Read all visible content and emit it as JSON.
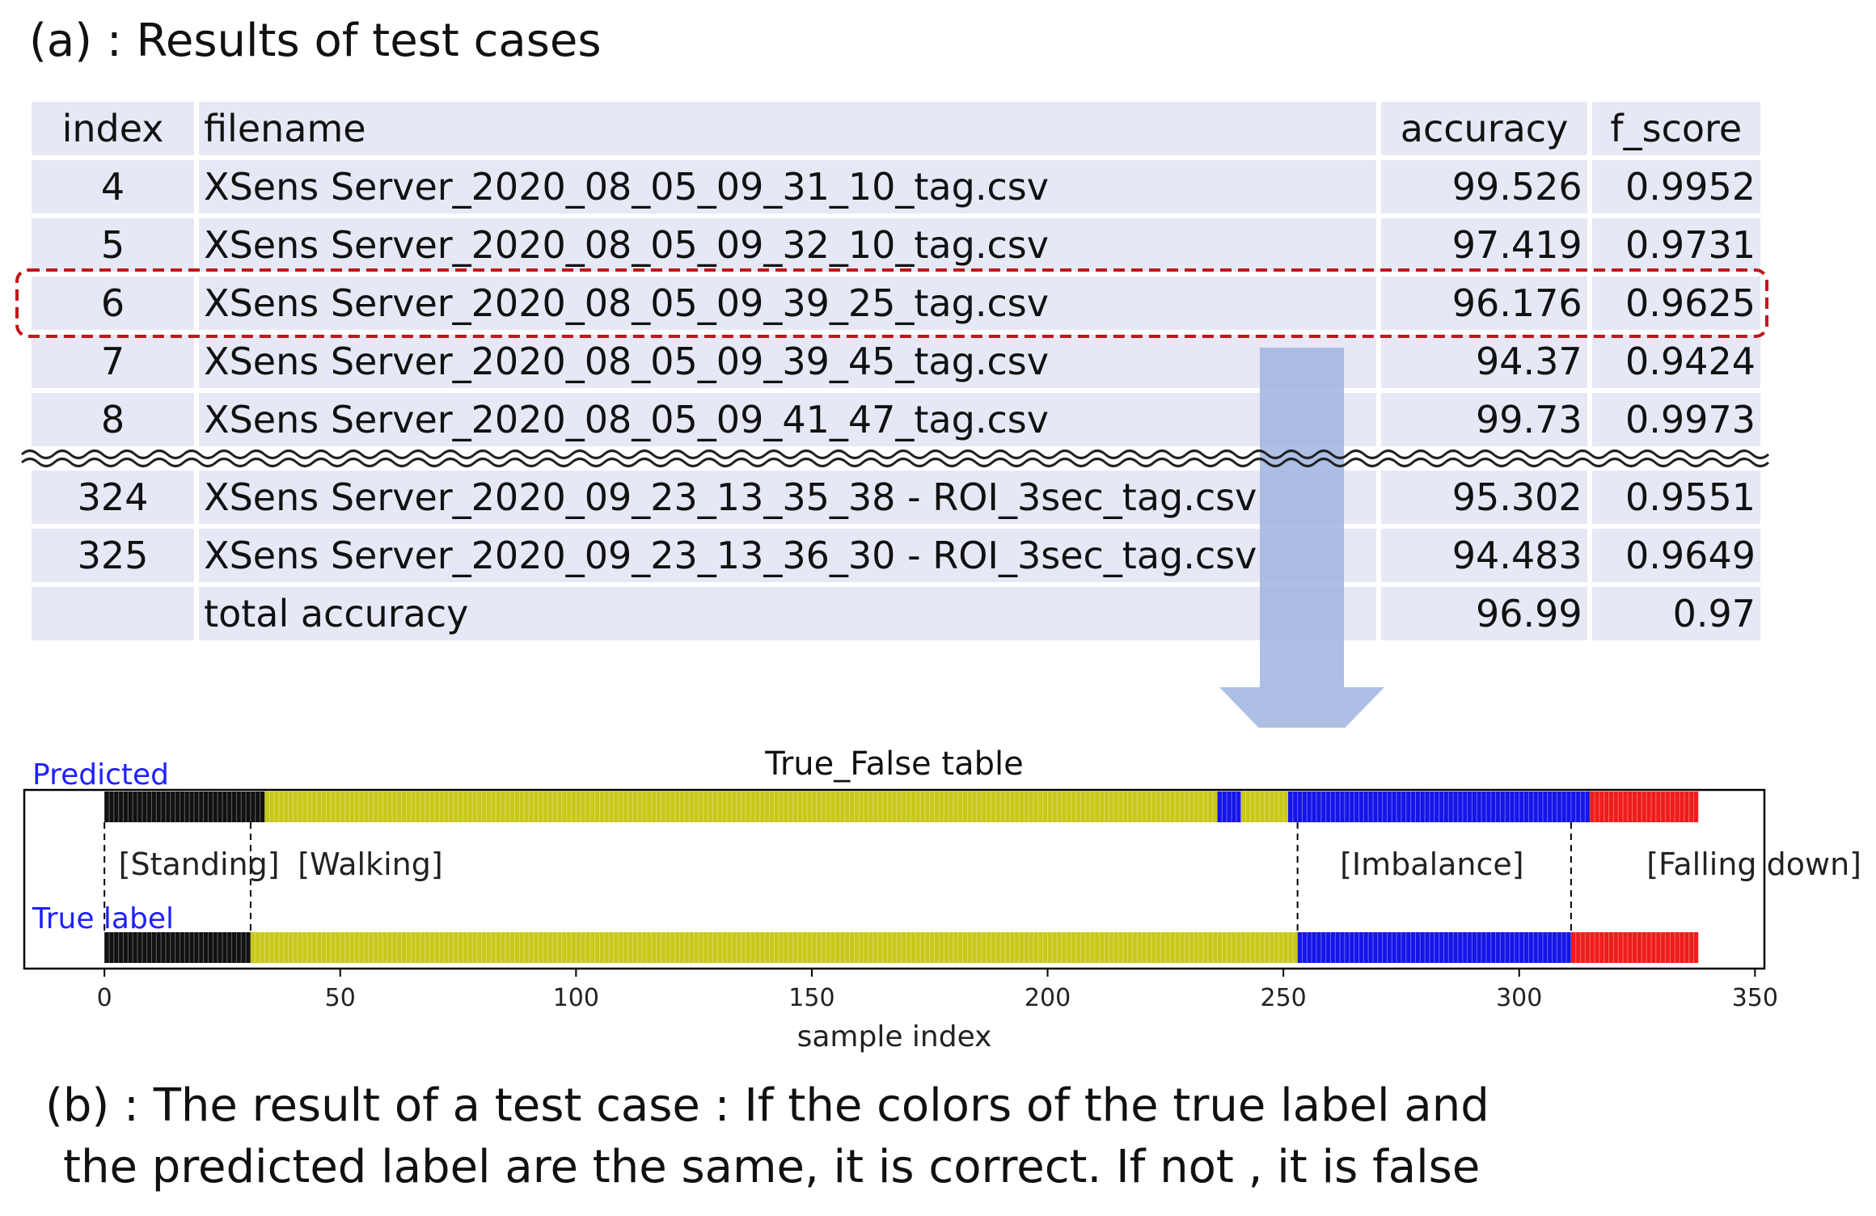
{
  "caption_a": "(a) : Results of test cases",
  "caption_b_line1": "(b) : The result of a test case : If the colors of the true label and",
  "caption_b_line2": "the predicted label are the same, it is correct. If not , it is false",
  "table": {
    "headers": [
      "index",
      "filename",
      "accuracy",
      "f_score"
    ],
    "rows": [
      {
        "index": "4",
        "filename": "XSens Server_2020_08_05_09_31_10_tag.csv",
        "accuracy": "99.526",
        "f_score": "0.9952"
      },
      {
        "index": "5",
        "filename": "XSens Server_2020_08_05_09_32_10_tag.csv",
        "accuracy": "97.419",
        "f_score": "0.9731"
      },
      {
        "index": "6",
        "filename": "XSens Server_2020_08_05_09_39_25_tag.csv",
        "accuracy": "96.176",
        "f_score": "0.9625"
      },
      {
        "index": "7",
        "filename": "XSens Server_2020_08_05_09_39_45_tag.csv",
        "accuracy": "94.37",
        "f_score": "0.9424"
      },
      {
        "index": "8",
        "filename": "XSens Server_2020_08_05_09_41_47_tag.csv",
        "accuracy": "99.73",
        "f_score": "0.9973"
      },
      {
        "index": "324",
        "filename": "XSens Server_2020_09_23_13_35_38 - ROI_3sec_tag.csv",
        "accuracy": "95.302",
        "f_score": "0.9551"
      },
      {
        "index": "325",
        "filename": "XSens Server_2020_09_23_13_36_30 - ROI_3sec_tag.csv",
        "accuracy": "94.483",
        "f_score": "0.9649"
      },
      {
        "index": "",
        "filename": "total accuracy",
        "accuracy": "96.99",
        "f_score": "0.97"
      }
    ],
    "highlighted_index": "6"
  },
  "colors": {
    "table_cell": "#e6e8f5",
    "highlight": "#c0171c",
    "arrow": "#9fb4e0",
    "standing": "#111111",
    "walking": "#c8c81c",
    "imbalance": "#1515e8",
    "falling": "#ee1c1c",
    "label_text": "#2020ff"
  },
  "chart_data": {
    "type": "bar",
    "title": "True_False table",
    "xlabel": "sample index",
    "xlim": [
      -17,
      352
    ],
    "xticks": [
      0,
      50,
      100,
      150,
      200,
      250,
      300,
      350
    ],
    "rows": [
      {
        "name": "Predicted",
        "segments": [
          {
            "start": 0,
            "end": 34,
            "class": "standing"
          },
          {
            "start": 34,
            "end": 236,
            "class": "walking"
          },
          {
            "start": 236,
            "end": 241,
            "class": "imbalance"
          },
          {
            "start": 241,
            "end": 251,
            "class": "walking"
          },
          {
            "start": 251,
            "end": 315,
            "class": "imbalance"
          },
          {
            "start": 315,
            "end": 338,
            "class": "falling"
          }
        ]
      },
      {
        "name": "True label",
        "segments": [
          {
            "start": 0,
            "end": 31,
            "class": "standing"
          },
          {
            "start": 31,
            "end": 253,
            "class": "walking"
          },
          {
            "start": 253,
            "end": 311,
            "class": "imbalance"
          },
          {
            "start": 311,
            "end": 338,
            "class": "falling"
          }
        ]
      }
    ],
    "boundaries": [
      0,
      31,
      253,
      311
    ],
    "class_labels": [
      {
        "text": "[Standing]",
        "x": 3
      },
      {
        "text": "[Walking]",
        "x": 41
      },
      {
        "text": "[Imbalance]",
        "x": 262
      },
      {
        "text": "[Falling down]",
        "x": 327
      }
    ]
  }
}
